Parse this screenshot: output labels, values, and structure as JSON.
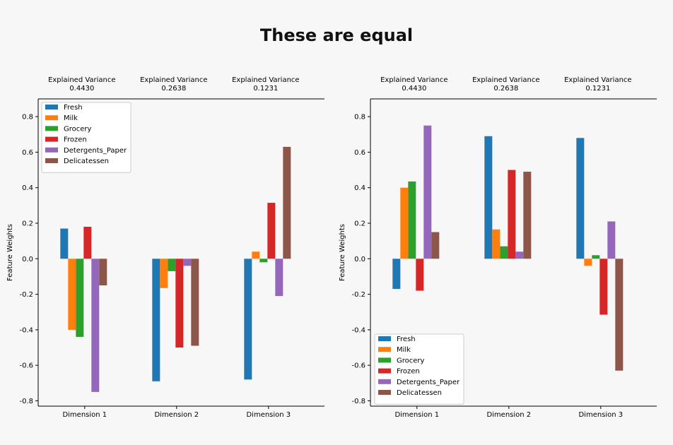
{
  "page": {
    "title": "These are equal"
  },
  "chart_data": [
    {
      "type": "bar",
      "panel": "left",
      "categories": [
        "Dimension 1",
        "Dimension 2",
        "Dimension 3"
      ],
      "variance_labels": [
        [
          "Explained Variance",
          "0.4430"
        ],
        [
          "Explained Variance",
          "0.2638"
        ],
        [
          "Explained Variance",
          "0.1231"
        ]
      ],
      "ylabel": "Feature Weights",
      "ylim": [
        -0.83,
        0.9
      ],
      "yticks": [
        -0.8,
        -0.6,
        -0.4,
        -0.2,
        0.0,
        0.2,
        0.4,
        0.6,
        0.8
      ],
      "legend_position": "top-left",
      "series": [
        {
          "name": "Fresh",
          "color": "#1f77b4",
          "values": [
            0.17,
            -0.69,
            -0.68
          ]
        },
        {
          "name": "Milk",
          "color": "#ff7f0e",
          "values": [
            -0.4,
            -0.165,
            0.04
          ]
        },
        {
          "name": "Grocery",
          "color": "#2ca02c",
          "values": [
            -0.44,
            -0.07,
            -0.02
          ]
        },
        {
          "name": "Frozen",
          "color": "#d62728",
          "values": [
            0.18,
            -0.5,
            0.315
          ]
        },
        {
          "name": "Detergents_Paper",
          "color": "#9467bd",
          "values": [
            -0.75,
            -0.04,
            -0.21
          ]
        },
        {
          "name": "Delicatessen",
          "color": "#8c564b",
          "values": [
            -0.15,
            -0.49,
            0.63
          ]
        }
      ]
    },
    {
      "type": "bar",
      "panel": "right",
      "categories": [
        "Dimension 1",
        "Dimension 2",
        "Dimension 3"
      ],
      "variance_labels": [
        [
          "Explained Variance",
          "0.4430"
        ],
        [
          "Explained Variance",
          "0.2638"
        ],
        [
          "Explained Variance",
          "0.1231"
        ]
      ],
      "ylabel": "Feature Weights",
      "ylim": [
        -0.83,
        0.9
      ],
      "yticks": [
        -0.8,
        -0.6,
        -0.4,
        -0.2,
        0.0,
        0.2,
        0.4,
        0.6,
        0.8
      ],
      "legend_position": "bottom-left",
      "series": [
        {
          "name": "Fresh",
          "color": "#1f77b4",
          "values": [
            -0.17,
            0.69,
            0.68
          ]
        },
        {
          "name": "Milk",
          "color": "#ff7f0e",
          "values": [
            0.4,
            0.165,
            -0.04
          ]
        },
        {
          "name": "Grocery",
          "color": "#2ca02c",
          "values": [
            0.435,
            0.07,
            0.02
          ]
        },
        {
          "name": "Frozen",
          "color": "#d62728",
          "values": [
            -0.18,
            0.5,
            -0.315
          ]
        },
        {
          "name": "Detergents_Paper",
          "color": "#9467bd",
          "values": [
            0.75,
            0.04,
            0.21
          ]
        },
        {
          "name": "Delicatessen",
          "color": "#8c564b",
          "values": [
            0.15,
            0.49,
            -0.63
          ]
        }
      ]
    }
  ]
}
